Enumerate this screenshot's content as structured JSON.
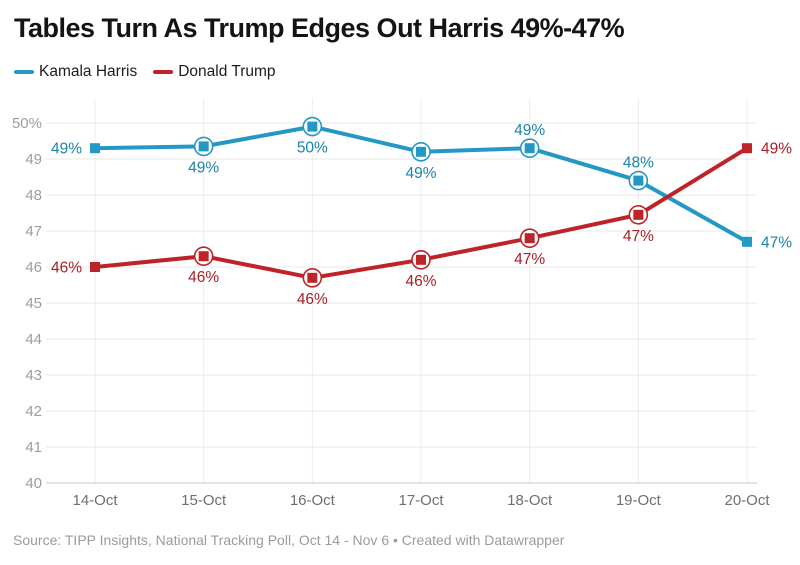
{
  "source": "Source: TIPP Insights, National Tracking Poll, Oct 14 - Nov 6 • Created with Datawrapper",
  "chart_data": {
    "type": "line",
    "title": "Tables Turn As Trump Edges Out Harris 49%-47%",
    "categories": [
      "14-Oct",
      "15-Oct",
      "16-Oct",
      "17-Oct",
      "18-Oct",
      "19-Oct",
      "20-Oct"
    ],
    "series": [
      {
        "name": "Kamala Harris",
        "color": "#2398c4",
        "label_color": "#1d83ab",
        "values": [
          49.3,
          49.35,
          49.9,
          49.2,
          49.3,
          48.4,
          46.7
        ],
        "point_labels": [
          "49%",
          "49%",
          "50%",
          "49%",
          "49%",
          "48%",
          "47%"
        ],
        "label_placement": [
          "left",
          "below",
          "below",
          "below",
          "above",
          "above",
          "right"
        ]
      },
      {
        "name": "Donald Trump",
        "color": "#bd2327",
        "label_color": "#a81f24",
        "values": [
          46.0,
          46.3,
          45.7,
          46.2,
          46.8,
          47.45,
          49.3
        ],
        "point_labels": [
          "46%",
          "46%",
          "46%",
          "46%",
          "47%",
          "47%",
          "49%"
        ],
        "label_placement": [
          "left",
          "below",
          "below",
          "below",
          "below",
          "below",
          "right"
        ]
      }
    ],
    "ylim": [
      40,
      50
    ],
    "yticks": [
      {
        "value": 50,
        "label": "50%"
      },
      {
        "value": 49,
        "label": "49"
      },
      {
        "value": 48,
        "label": "48"
      },
      {
        "value": 47,
        "label": "47"
      },
      {
        "value": 46,
        "label": "46"
      },
      {
        "value": 45,
        "label": "45"
      },
      {
        "value": 44,
        "label": "44"
      },
      {
        "value": 43,
        "label": "43"
      },
      {
        "value": 42,
        "label": "42"
      },
      {
        "value": 41,
        "label": "41"
      },
      {
        "value": 40,
        "label": "40"
      }
    ],
    "grid": true,
    "legend_position": "top-left",
    "xlabel": "",
    "ylabel": ""
  }
}
